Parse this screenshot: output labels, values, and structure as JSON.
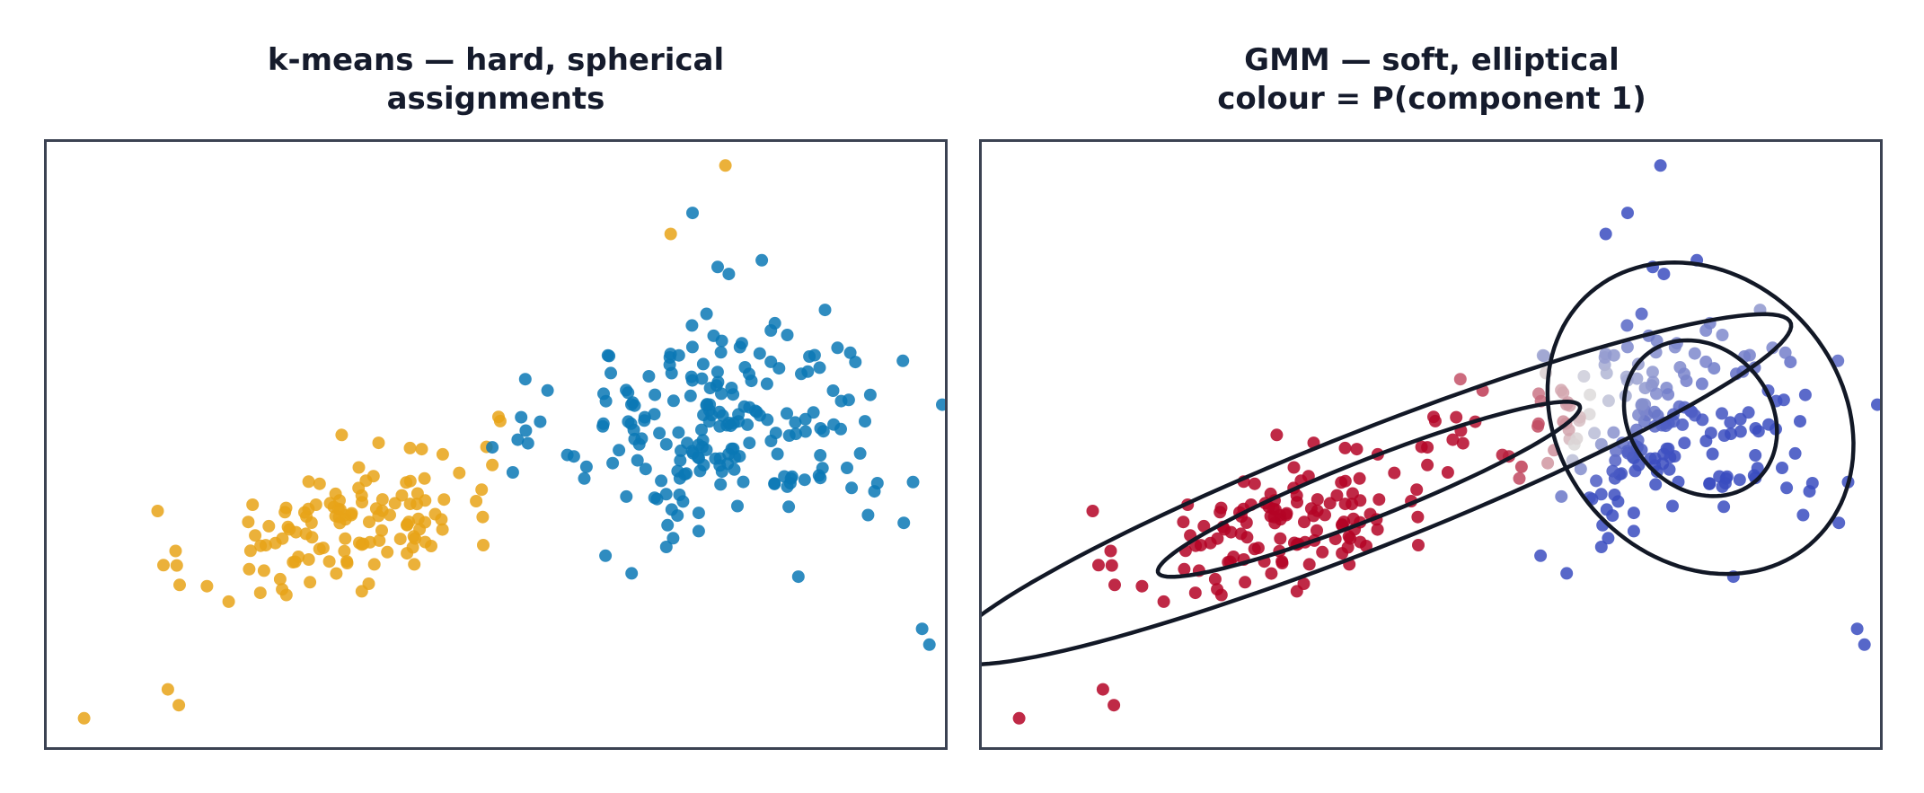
{
  "chart_data": [
    {
      "type": "scatter",
      "title_lines": [
        "k-means — hard, spherical",
        "assignments"
      ],
      "xlabel": "",
      "ylabel": "",
      "axes_visible": false,
      "grid": false,
      "xlim": [
        -2.8,
        9.6
      ],
      "ylim": [
        -4.6,
        7.0
      ],
      "colors": {
        "cluster_a": "#e8a317",
        "cluster_b": "#0a78b5",
        "frame": "#3b4252"
      },
      "cluster_means": {
        "cluster_a": {
          "x": 1.3,
          "y": -0.3,
          "sx": 1.05,
          "sy": 0.8,
          "rho": 0.55
        },
        "cluster_b": {
          "x": 6.6,
          "y": 1.6,
          "sx": 1.15,
          "sy": 1.1,
          "rho": 0.0
        }
      },
      "series": [
        {
          "name": "",
          "n": 130,
          "x": [
            -2.25,
            -1.1,
            -0.95,
            6.55,
            5.8
          ],
          "y": [
            -4.0,
            -3.45,
            -3.75,
            6.5,
            5.2
          ]
        },
        {
          "name": "",
          "n": 210,
          "x": [
            9.25,
            9.35,
            7.4,
            6.1,
            7.05
          ],
          "y": [
            -2.3,
            -2.6,
            0.4,
            5.6,
            4.7
          ]
        }
      ]
    },
    {
      "type": "scatter",
      "title_lines": [
        "GMM — soft, elliptical",
        "colour = P(component 1)"
      ],
      "xlabel": "",
      "ylabel": "",
      "axes_visible": false,
      "grid": false,
      "xlim": [
        -2.8,
        9.6
      ],
      "ylim": [
        -4.6,
        7.0
      ],
      "colormap": {
        "p0": "#3a4cc0",
        "p05": "#dddcdc",
        "p1": "#b40426"
      },
      "ellipse_color": "#121826",
      "components": [
        {
          "name": "component 1",
          "mean": [
            2.55,
            0.35
          ],
          "sd_major": 3.3,
          "sd_minor": 0.52,
          "angle_deg": 29,
          "levels": [
            1.0,
            2.0
          ]
        },
        {
          "name": "component 2",
          "mean": [
            7.1,
            1.7
          ],
          "sd_major": 1.5,
          "sd_minor": 1.02,
          "angle_deg": -77,
          "levels": [
            1.0,
            2.0
          ]
        }
      ]
    }
  ]
}
